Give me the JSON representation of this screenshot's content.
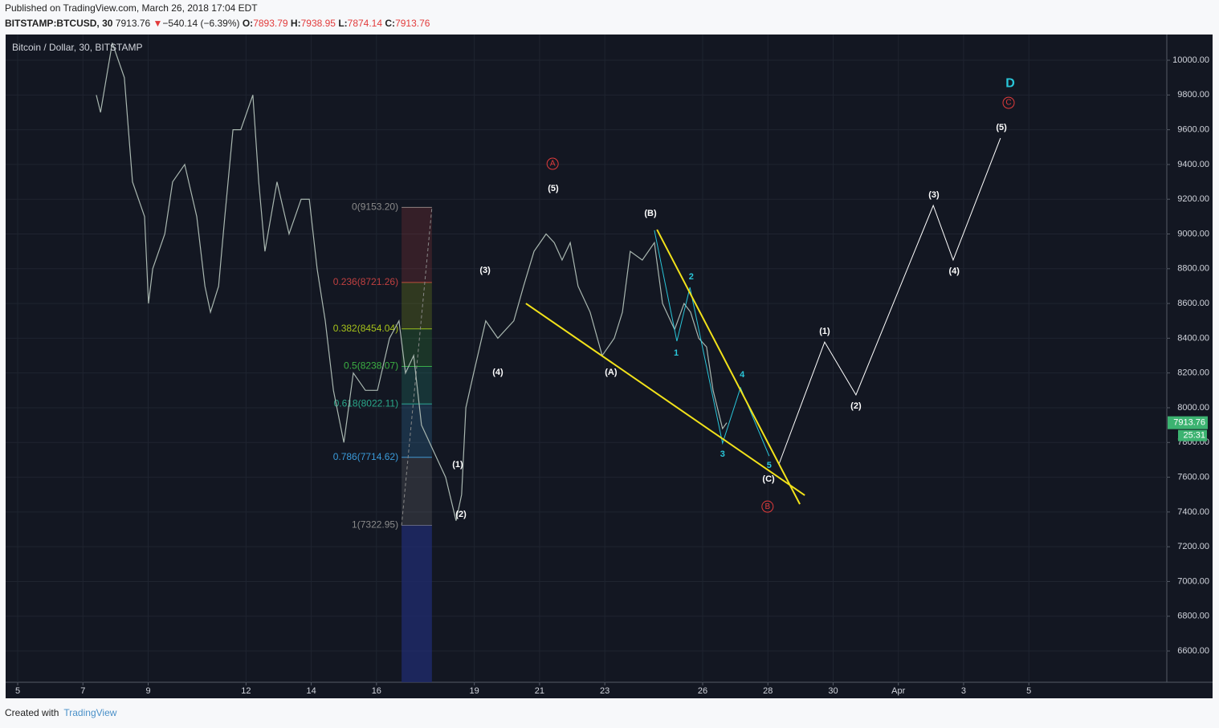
{
  "header": {
    "published": "Published on TradingView.com, March 26, 2018 17:04 EDT",
    "symbol": "BITSTAMP:BTCUSD, 30",
    "price": "7913.76",
    "arrow": "▼",
    "change": "−540.14 (−6.39%)",
    "o_label": "O:",
    "open": "7893.79",
    "h_label": "H:",
    "high": "7938.95",
    "l_label": "L:",
    "low": "7874.14",
    "c_label": "C:",
    "close": "7913.76"
  },
  "footer": {
    "created": "Created with",
    "brand": "TradingView"
  },
  "chart_data": {
    "type": "line",
    "title": "Bitcoin / Dollar, 30, BITSTAMP",
    "xlim": [
      4.63,
      40.23
    ],
    "xticks": [
      5,
      7,
      9,
      12,
      14,
      16,
      19,
      21,
      23,
      26,
      28,
      30,
      {
        "value": 32,
        "label": "Apr"
      },
      {
        "value": 34,
        "label": "3"
      },
      {
        "value": 36,
        "label": "5"
      }
    ],
    "ylim": [
      6420,
      10148
    ],
    "yticks": [
      {
        "value": 6600,
        "label": "6600.00"
      },
      {
        "value": 6800,
        "label": "6800.00"
      },
      {
        "value": 7000,
        "label": "7000.00"
      },
      {
        "value": 7200,
        "label": "7200.00"
      },
      {
        "value": 7400,
        "label": "7400.00"
      },
      {
        "value": 7600,
        "label": "7600.00"
      },
      {
        "value": 7800,
        "label": "7800.00"
      },
      {
        "value": 8000,
        "label": "8000.00"
      },
      {
        "value": 8200,
        "label": "8200.00"
      },
      {
        "value": 8400,
        "label": "8400.00"
      },
      {
        "value": 8600,
        "label": "8600.00"
      },
      {
        "value": 8800,
        "label": "8800.00"
      },
      {
        "value": 9000,
        "label": "9000.00"
      },
      {
        "value": 9200,
        "label": "9200.00"
      },
      {
        "value": 9400,
        "label": "9400.00"
      },
      {
        "value": 9600,
        "label": "9600.00"
      },
      {
        "value": 9800,
        "label": "9800.00"
      },
      {
        "value": 10000,
        "label": "10000.00"
      }
    ],
    "grid": true,
    "last_price": 7913.76,
    "last_price_label": "7913.76",
    "countdown": "25:31",
    "price": {
      "color": "#a9b7b0",
      "x": [
        7.41,
        7.54,
        7.9,
        8.27,
        8.52,
        8.89,
        9.01,
        9.14,
        9.51,
        9.75,
        10.12,
        10.49,
        10.74,
        10.91,
        11.16,
        11.35,
        11.6,
        11.84,
        12.21,
        12.39,
        12.58,
        12.95,
        13.32,
        13.69,
        13.94,
        14.18,
        14.43,
        14.68,
        15.0,
        15.29,
        15.66,
        16.03,
        16.4,
        16.69,
        16.89,
        17.14,
        17.38,
        17.75,
        18.12,
        18.44,
        18.61,
        18.74,
        18.98,
        19.35,
        19.72,
        20.21,
        20.51,
        20.83,
        21.2,
        21.45,
        21.69,
        21.94,
        22.18,
        22.55,
        22.92,
        23.29,
        23.54,
        23.78,
        24.15,
        24.52,
        24.77,
        25.14,
        25.43,
        25.63,
        25.88,
        26.12,
        26.32,
        26.61,
        26.74
      ],
      "values": [
        9800,
        9700,
        10100,
        9900,
        9300,
        9100,
        8600,
        8800,
        9000,
        9300,
        9400,
        9100,
        8700,
        8550,
        8700,
        9100,
        9600,
        9600,
        9800,
        9300,
        8900,
        9300,
        9000,
        9200,
        9200,
        8800,
        8500,
        8100,
        7800,
        8200,
        8100,
        8100,
        8400,
        8500,
        8200,
        8300,
        7900,
        7750,
        7600,
        7350,
        7500,
        8000,
        8200,
        8500,
        8400,
        8500,
        8700,
        8900,
        9000,
        8950,
        8850,
        8950,
        8700,
        8550,
        8300,
        8400,
        8550,
        8900,
        8850,
        8950,
        8600,
        8450,
        8600,
        8550,
        8400,
        8350,
        8100,
        7880,
        7913.76
      ]
    },
    "fib": {
      "x": [
        16.77,
        17.7
      ],
      "extension_color": "#1f2a6b",
      "levels": [
        {
          "ratio": 0,
          "price": 9153.2,
          "label": "0(9153.20)",
          "color": "#8a8a8a"
        },
        {
          "ratio": 0.236,
          "price": 8721.26,
          "label": "0.236(8721.26)",
          "color": "#c04040"
        },
        {
          "ratio": 0.382,
          "price": 8454.04,
          "label": "0.382(8454.04)",
          "color": "#a6c21a"
        },
        {
          "ratio": 0.5,
          "price": 8238.07,
          "label": "0.5(8238.07)",
          "color": "#3cb043"
        },
        {
          "ratio": 0.618,
          "price": 8022.11,
          "label": "0.618(8022.11)",
          "color": "#2aa88a"
        },
        {
          "ratio": 0.786,
          "price": 7714.62,
          "label": "0.786(7714.62)",
          "color": "#3a9ad9"
        },
        {
          "ratio": 1,
          "price": 7322.95,
          "label": "1(7322.95)",
          "color": "#8a8a8a"
        }
      ]
    },
    "waves": [
      {
        "name": "minor",
        "color": "#29c6d9",
        "x": [
          24.52,
          25.21,
          25.61,
          26.61,
          27.16,
          28.04
        ],
        "values": [
          9021,
          8383,
          8693,
          7796,
          8115,
          7722
        ]
      },
      {
        "name": "projection",
        "color": "#ffffff",
        "x": [
          28.34,
          29.74,
          30.7,
          33.07,
          33.68,
          35.13
        ],
        "values": [
          7676,
          8378,
          8074,
          9164,
          8850,
          9552
        ]
      },
      {
        "name": "upper-trendline",
        "color": "#f2e21a",
        "x": [
          24.6,
          28.98
        ],
        "values": [
          9025,
          7445
        ]
      },
      {
        "name": "lower-trendline",
        "color": "#f2e21a",
        "x": [
          20.58,
          29.13
        ],
        "values": [
          8600,
          7496
        ]
      }
    ],
    "annotations": [
      {
        "text": "(5)",
        "x": 21.42,
        "price": 9261,
        "color": "#ffffff"
      },
      {
        "text": "A",
        "x": 21.4,
        "price": 9404,
        "color": "#e23b3b",
        "circled": true
      },
      {
        "text": "(3)",
        "x": 19.33,
        "price": 8790,
        "color": "#ffffff"
      },
      {
        "text": "(4)",
        "x": 19.72,
        "price": 8203,
        "color": "#ffffff"
      },
      {
        "text": "(1)",
        "x": 18.49,
        "price": 7672,
        "color": "#ffffff"
      },
      {
        "text": "(2)",
        "x": 18.59,
        "price": 7385,
        "color": "#ffffff"
      },
      {
        "text": "(A)",
        "x": 23.19,
        "price": 8203,
        "color": "#ffffff"
      },
      {
        "text": "(B)",
        "x": 24.4,
        "price": 9118,
        "color": "#ffffff"
      },
      {
        "text": "1",
        "x": 25.19,
        "price": 8314,
        "color": "#29c6d9"
      },
      {
        "text": "2",
        "x": 25.65,
        "price": 8753,
        "color": "#29c6d9"
      },
      {
        "text": "3",
        "x": 26.61,
        "price": 7732,
        "color": "#29c6d9"
      },
      {
        "text": "4",
        "x": 27.21,
        "price": 8189,
        "color": "#29c6d9"
      },
      {
        "text": "5",
        "x": 28.04,
        "price": 7667,
        "color": "#29c6d9"
      },
      {
        "text": "(C)",
        "x": 28.02,
        "price": 7589,
        "color": "#ffffff"
      },
      {
        "text": "B",
        "x": 27.99,
        "price": 7431,
        "color": "#e23b3b",
        "circled": true
      },
      {
        "text": "(1)",
        "x": 29.74,
        "price": 8439,
        "color": "#ffffff"
      },
      {
        "text": "(2)",
        "x": 30.7,
        "price": 8009,
        "color": "#ffffff"
      },
      {
        "text": "(3)",
        "x": 33.09,
        "price": 9224,
        "color": "#ffffff"
      },
      {
        "text": "(4)",
        "x": 33.71,
        "price": 8785,
        "color": "#ffffff"
      },
      {
        "text": "(5)",
        "x": 35.16,
        "price": 9612,
        "color": "#ffffff"
      },
      {
        "text": "C",
        "x": 35.38,
        "price": 9755,
        "color": "#e23b3b",
        "circled": true
      },
      {
        "text": "D",
        "x": 35.43,
        "price": 9866,
        "color": "#29c6d9",
        "big": true
      }
    ]
  }
}
